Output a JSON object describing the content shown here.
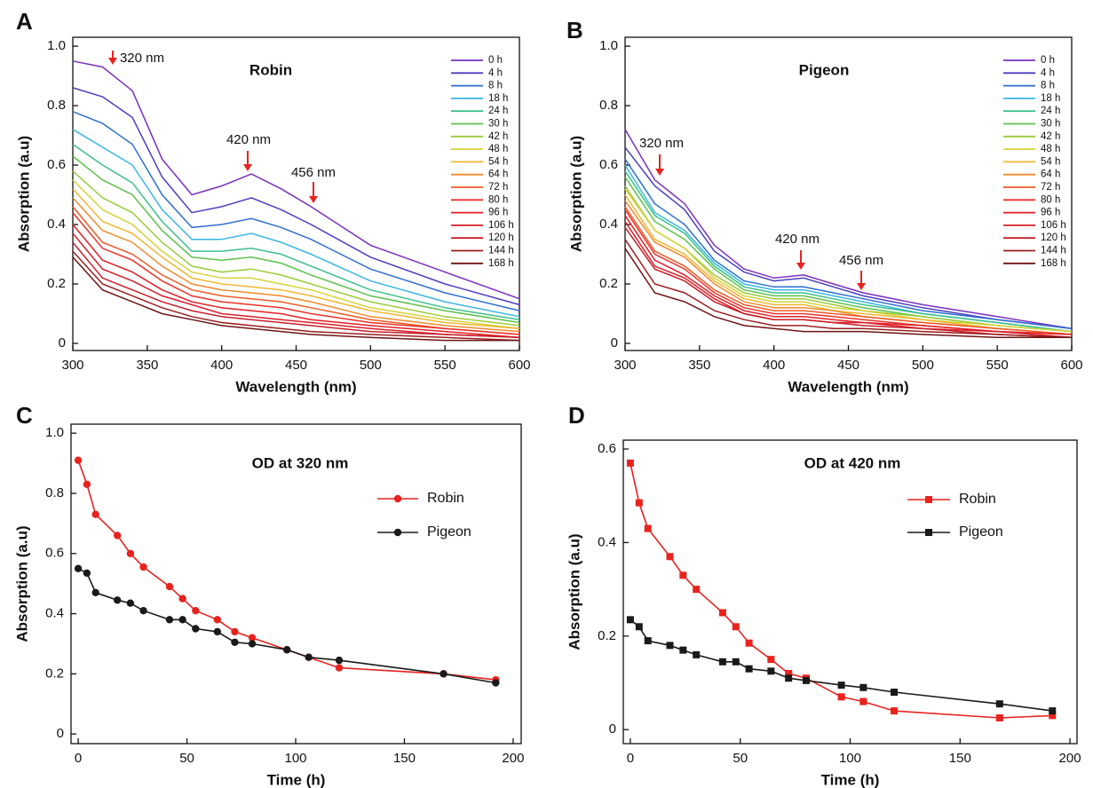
{
  "chart_data": [
    {
      "type": "line",
      "label": "A",
      "title": "Robin",
      "xlabel": "Wavelength (nm)",
      "ylabel": "Absorption (a.u)",
      "x": [
        300,
        320,
        340,
        360,
        380,
        400,
        420,
        440,
        460,
        500,
        550,
        600
      ],
      "xlim": [
        300,
        600
      ],
      "xticks": [
        300,
        350,
        400,
        450,
        500,
        550,
        600
      ],
      "ylim": [
        -0.024,
        1.03
      ],
      "yticks": [
        0,
        0.2,
        0.4,
        0.6,
        0.8,
        {
          "value": 1,
          "label": "1.0"
        }
      ],
      "annotations": [
        "320 nm",
        "420 nm",
        "456 nm"
      ],
      "series": [
        {
          "name": "0 h",
          "color": "#7b2fbe",
          "values": [
            0.95,
            0.93,
            0.85,
            0.62,
            0.5,
            0.53,
            0.57,
            0.52,
            0.46,
            0.33,
            0.24,
            0.15
          ]
        },
        {
          "name": "4 h",
          "color": "#4a3fc0",
          "values": [
            0.86,
            0.83,
            0.76,
            0.56,
            0.44,
            0.46,
            0.49,
            0.45,
            0.4,
            0.29,
            0.2,
            0.13
          ]
        },
        {
          "name": "8 h",
          "color": "#2e6fd0",
          "values": [
            0.78,
            0.74,
            0.67,
            0.5,
            0.39,
            0.4,
            0.42,
            0.39,
            0.35,
            0.25,
            0.17,
            0.11
          ]
        },
        {
          "name": "18 h",
          "color": "#38b6e6",
          "values": [
            0.72,
            0.66,
            0.6,
            0.45,
            0.35,
            0.35,
            0.37,
            0.34,
            0.3,
            0.21,
            0.14,
            0.09
          ]
        },
        {
          "name": "24 h",
          "color": "#3cbf8a",
          "values": [
            0.67,
            0.6,
            0.54,
            0.41,
            0.31,
            0.31,
            0.32,
            0.3,
            0.26,
            0.18,
            0.12,
            0.08
          ]
        },
        {
          "name": "30 h",
          "color": "#5cc14a",
          "values": [
            0.63,
            0.55,
            0.5,
            0.38,
            0.29,
            0.28,
            0.29,
            0.27,
            0.23,
            0.16,
            0.11,
            0.07
          ]
        },
        {
          "name": "42 h",
          "color": "#9acb3a",
          "values": [
            0.58,
            0.49,
            0.44,
            0.34,
            0.26,
            0.24,
            0.25,
            0.23,
            0.2,
            0.14,
            0.09,
            0.06
          ]
        },
        {
          "name": "48 h",
          "color": "#d8d23a",
          "values": [
            0.55,
            0.45,
            0.4,
            0.31,
            0.24,
            0.22,
            0.22,
            0.2,
            0.18,
            0.12,
            0.08,
            0.05
          ]
        },
        {
          "name": "54 h",
          "color": "#f2b632",
          "values": [
            0.52,
            0.41,
            0.37,
            0.29,
            0.22,
            0.2,
            0.19,
            0.18,
            0.16,
            0.11,
            0.07,
            0.05
          ]
        },
        {
          "name": "64 h",
          "color": "#f08a2c",
          "values": [
            0.49,
            0.38,
            0.34,
            0.26,
            0.2,
            0.18,
            0.17,
            0.16,
            0.14,
            0.09,
            0.06,
            0.04
          ]
        },
        {
          "name": "72 h",
          "color": "#ee5a24",
          "values": [
            0.46,
            0.34,
            0.3,
            0.23,
            0.18,
            0.16,
            0.15,
            0.14,
            0.12,
            0.08,
            0.05,
            0.03
          ]
        },
        {
          "name": "80 h",
          "color": "#e8322a",
          "values": [
            0.44,
            0.32,
            0.28,
            0.21,
            0.16,
            0.14,
            0.13,
            0.12,
            0.1,
            0.07,
            0.05,
            0.03
          ]
        },
        {
          "name": "96 h",
          "color": "#e21f26",
          "values": [
            0.4,
            0.28,
            0.24,
            0.18,
            0.14,
            0.12,
            0.11,
            0.1,
            0.08,
            0.06,
            0.04,
            0.02
          ]
        },
        {
          "name": "106 h",
          "color": "#d81e2a",
          "values": [
            0.37,
            0.25,
            0.21,
            0.16,
            0.13,
            0.1,
            0.09,
            0.08,
            0.07,
            0.05,
            0.03,
            0.02
          ]
        },
        {
          "name": "120 h",
          "color": "#c81e28",
          "values": [
            0.34,
            0.22,
            0.18,
            0.14,
            0.11,
            0.09,
            0.08,
            0.07,
            0.06,
            0.04,
            0.03,
            0.02
          ]
        },
        {
          "name": "144 h",
          "color": "#9a1e1e",
          "values": [
            0.31,
            0.2,
            0.16,
            0.12,
            0.09,
            0.07,
            0.06,
            0.05,
            0.04,
            0.03,
            0.02,
            0.01
          ]
        },
        {
          "name": "168 h",
          "color": "#6e1414",
          "values": [
            0.29,
            0.18,
            0.14,
            0.1,
            0.08,
            0.06,
            0.05,
            0.04,
            0.03,
            0.02,
            0.01,
            0.01
          ]
        }
      ]
    },
    {
      "type": "line",
      "label": "B",
      "title": "Pigeon",
      "xlabel": "Wavelength (nm)",
      "ylabel": "Absorption (a.u)",
      "x": [
        300,
        320,
        340,
        360,
        380,
        400,
        420,
        440,
        460,
        500,
        550,
        600
      ],
      "xlim": [
        300,
        600
      ],
      "xticks": [
        300,
        350,
        400,
        450,
        500,
        550,
        600
      ],
      "ylim": [
        -0.024,
        1.03
      ],
      "yticks": [
        0,
        0.2,
        0.4,
        0.6,
        0.8,
        {
          "value": 1,
          "label": "1.0"
        }
      ],
      "annotations": [
        "320 nm",
        "420 nm",
        "456 nm"
      ],
      "series": [
        {
          "name": "0 h",
          "color": "#7b2fbe",
          "values": [
            0.72,
            0.55,
            0.47,
            0.33,
            0.25,
            0.22,
            0.23,
            0.2,
            0.17,
            0.13,
            0.09,
            0.05
          ]
        },
        {
          "name": "4 h",
          "color": "#4a3fc0",
          "values": [
            0.66,
            0.53,
            0.45,
            0.31,
            0.24,
            0.21,
            0.22,
            0.19,
            0.16,
            0.12,
            0.08,
            0.05
          ]
        },
        {
          "name": "8 h",
          "color": "#2e6fd0",
          "values": [
            0.62,
            0.47,
            0.4,
            0.28,
            0.21,
            0.19,
            0.19,
            0.17,
            0.15,
            0.11,
            0.08,
            0.05
          ]
        },
        {
          "name": "18 h",
          "color": "#38b6e6",
          "values": [
            0.6,
            0.44,
            0.38,
            0.27,
            0.2,
            0.18,
            0.18,
            0.16,
            0.14,
            0.1,
            0.07,
            0.04
          ]
        },
        {
          "name": "24 h",
          "color": "#3cbf8a",
          "values": [
            0.58,
            0.43,
            0.37,
            0.26,
            0.19,
            0.17,
            0.17,
            0.15,
            0.13,
            0.1,
            0.07,
            0.04
          ]
        },
        {
          "name": "30 h",
          "color": "#5cc14a",
          "values": [
            0.56,
            0.41,
            0.35,
            0.25,
            0.18,
            0.16,
            0.16,
            0.14,
            0.12,
            0.09,
            0.06,
            0.04
          ]
        },
        {
          "name": "42 h",
          "color": "#9acb3a",
          "values": [
            0.53,
            0.38,
            0.32,
            0.23,
            0.17,
            0.15,
            0.15,
            0.13,
            0.11,
            0.09,
            0.06,
            0.04
          ]
        },
        {
          "name": "48 h",
          "color": "#d8d23a",
          "values": [
            0.52,
            0.38,
            0.32,
            0.22,
            0.16,
            0.14,
            0.14,
            0.12,
            0.11,
            0.08,
            0.06,
            0.04
          ]
        },
        {
          "name": "54 h",
          "color": "#f2b632",
          "values": [
            0.5,
            0.35,
            0.3,
            0.21,
            0.15,
            0.13,
            0.13,
            0.11,
            0.1,
            0.08,
            0.05,
            0.03
          ]
        },
        {
          "name": "64 h",
          "color": "#f08a2c",
          "values": [
            0.48,
            0.34,
            0.29,
            0.2,
            0.14,
            0.12,
            0.12,
            0.11,
            0.09,
            0.07,
            0.05,
            0.03
          ]
        },
        {
          "name": "72 h",
          "color": "#ee5a24",
          "values": [
            0.46,
            0.31,
            0.26,
            0.18,
            0.13,
            0.11,
            0.11,
            0.1,
            0.09,
            0.07,
            0.05,
            0.03
          ]
        },
        {
          "name": "80 h",
          "color": "#e8322a",
          "values": [
            0.45,
            0.3,
            0.25,
            0.17,
            0.12,
            0.1,
            0.1,
            0.09,
            0.08,
            0.06,
            0.04,
            0.03
          ]
        },
        {
          "name": "96 h",
          "color": "#e21f26",
          "values": [
            0.43,
            0.28,
            0.23,
            0.16,
            0.11,
            0.09,
            0.09,
            0.08,
            0.07,
            0.06,
            0.04,
            0.03
          ]
        },
        {
          "name": "106 h",
          "color": "#d81e2a",
          "values": [
            0.41,
            0.26,
            0.22,
            0.15,
            0.1,
            0.08,
            0.08,
            0.07,
            0.07,
            0.05,
            0.04,
            0.02
          ]
        },
        {
          "name": "120 h",
          "color": "#c81e28",
          "values": [
            0.39,
            0.25,
            0.21,
            0.14,
            0.1,
            0.08,
            0.08,
            0.07,
            0.06,
            0.05,
            0.03,
            0.02
          ]
        },
        {
          "name": "144 h",
          "color": "#9a1e1e",
          "values": [
            0.35,
            0.2,
            0.17,
            0.11,
            0.08,
            0.06,
            0.06,
            0.05,
            0.05,
            0.04,
            0.03,
            0.02
          ]
        },
        {
          "name": "168 h",
          "color": "#6e1414",
          "values": [
            0.32,
            0.17,
            0.14,
            0.09,
            0.06,
            0.05,
            0.04,
            0.04,
            0.04,
            0.03,
            0.02,
            0.02
          ]
        }
      ]
    },
    {
      "type": "line",
      "label": "C",
      "title": "OD at 320 nm",
      "xlabel": "Time (h)",
      "ylabel": "Absorption (a.u)",
      "marker": "circle",
      "x": [
        0,
        4,
        8,
        18,
        24,
        30,
        42,
        48,
        54,
        64,
        72,
        80,
        96,
        106,
        120,
        168,
        192
      ],
      "xlim": [
        -3.3,
        203.7
      ],
      "xticks": [
        0,
        50,
        100,
        150,
        200
      ],
      "ylim": [
        -0.032,
        1.03
      ],
      "yticks": [
        0,
        0.2,
        0.4,
        0.6,
        0.8,
        {
          "value": 1,
          "label": "1.0"
        }
      ],
      "series": [
        {
          "name": "Robin",
          "color": "#e8231f",
          "values": [
            0.91,
            0.83,
            0.73,
            0.66,
            0.6,
            0.555,
            0.49,
            0.45,
            0.41,
            0.38,
            0.34,
            0.32,
            0.28,
            0.255,
            0.22,
            0.2,
            0.18
          ]
        },
        {
          "name": "Pigeon",
          "color": "#1a1a1a",
          "values": [
            0.55,
            0.535,
            0.47,
            0.445,
            0.435,
            0.41,
            0.38,
            0.38,
            0.35,
            0.34,
            0.305,
            0.3,
            0.28,
            0.255,
            0.245,
            0.2,
            0.17
          ]
        }
      ]
    },
    {
      "type": "line",
      "label": "D",
      "title": "OD at 420 nm",
      "xlabel": "Time (h)",
      "ylabel": "Absorption (a.u)",
      "marker": "square",
      "x": [
        0,
        4,
        8,
        18,
        24,
        30,
        42,
        48,
        54,
        64,
        72,
        80,
        96,
        106,
        120,
        168,
        192
      ],
      "xlim": [
        -3.2,
        203.2
      ],
      "xticks": [
        0,
        50,
        100,
        150,
        200
      ],
      "ylim": [
        -0.03,
        0.619
      ],
      "yticks": [
        0,
        0.2,
        0.4,
        0.6
      ],
      "series": [
        {
          "name": "Robin",
          "color": "#e8231f",
          "values": [
            0.57,
            0.485,
            0.43,
            0.37,
            0.33,
            0.3,
            0.25,
            0.22,
            0.185,
            0.15,
            0.12,
            0.11,
            0.07,
            0.06,
            0.04,
            0.025,
            0.03
          ]
        },
        {
          "name": "Pigeon",
          "color": "#1a1a1a",
          "values": [
            0.235,
            0.22,
            0.19,
            0.18,
            0.17,
            0.16,
            0.145,
            0.145,
            0.13,
            0.125,
            0.11,
            0.105,
            0.095,
            0.09,
            0.08,
            0.055,
            0.04
          ]
        }
      ]
    }
  ]
}
